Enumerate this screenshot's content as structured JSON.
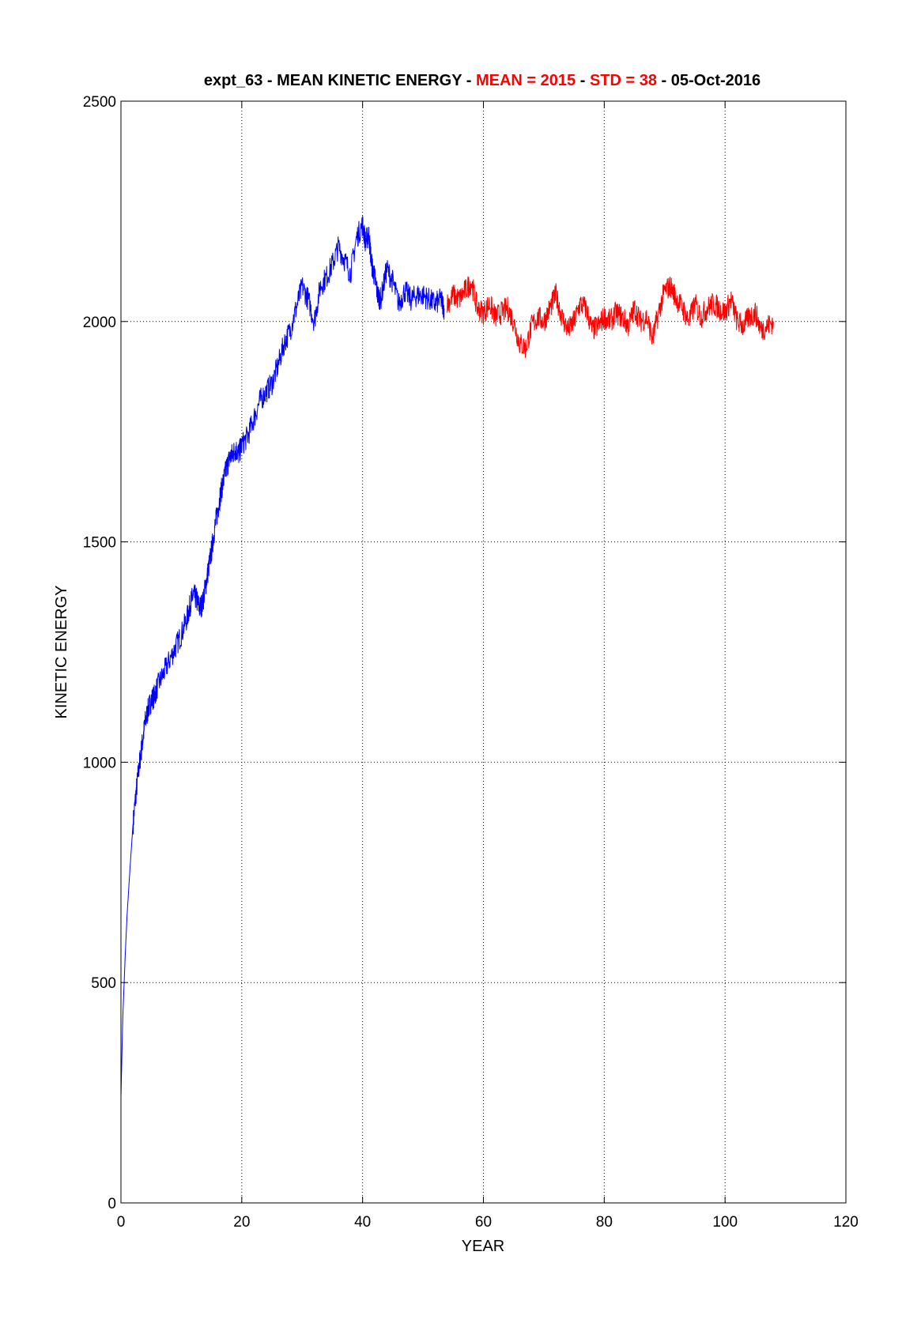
{
  "chart_data": {
    "type": "line",
    "title_parts": [
      {
        "text": "expt_63 - MEAN KINETIC ENERGY - ",
        "color": "#000000"
      },
      {
        "text": "MEAN =  2015",
        "color": "#ff0000"
      },
      {
        "text": " - ",
        "color": "#000000"
      },
      {
        "text": "STD =   38",
        "color": "#ff0000"
      },
      {
        "text": " - 05-Oct-2016",
        "color": "#000000"
      }
    ],
    "xlabel": "YEAR",
    "ylabel": "KINETIC ENERGY",
    "xlim": [
      0,
      120
    ],
    "ylim": [
      0,
      2500
    ],
    "xticks": [
      0,
      20,
      40,
      60,
      80,
      100,
      120
    ],
    "yticks": [
      0,
      500,
      1000,
      1500,
      2000,
      2500
    ],
    "grid": true,
    "mean": 2015,
    "std": 38,
    "series": [
      {
        "color": "#0000ff",
        "x": [
          0.0,
          0.3,
          0.7,
          1.0,
          1.5,
          2.0,
          2.5,
          3.0,
          3.5,
          4.0,
          4.5,
          5.0,
          5.5,
          6.0,
          7.0,
          8.0,
          9.0,
          10.0,
          11.0,
          11.5,
          12.0,
          12.5,
          13.0,
          13.5,
          14.0,
          14.5,
          15.0,
          15.5,
          16.0,
          16.5,
          17.0,
          17.5,
          18.0,
          18.5,
          19.0,
          19.5,
          20.0,
          21.0,
          22.0,
          23.0,
          24.0,
          25.0,
          26.0,
          27.0,
          28.0,
          29.0,
          30.0,
          31.0,
          32.0,
          33.0,
          34.0,
          35.0,
          36.0,
          37.0,
          38.0,
          39.0,
          40.0,
          40.5,
          41.0,
          41.5,
          42.0,
          42.5,
          43.0,
          44.0,
          45.0,
          46.0,
          47.0,
          48.0,
          49.0,
          50.0,
          51.0,
          52.0,
          53.0,
          53.5
        ],
        "y": [
          240,
          420,
          560,
          650,
          760,
          860,
          930,
          990,
          1040,
          1090,
          1120,
          1140,
          1150,
          1170,
          1200,
          1230,
          1260,
          1290,
          1330,
          1360,
          1380,
          1370,
          1350,
          1360,
          1400,
          1440,
          1480,
          1530,
          1570,
          1610,
          1640,
          1670,
          1690,
          1700,
          1710,
          1700,
          1720,
          1740,
          1780,
          1820,
          1840,
          1860,
          1900,
          1950,
          1980,
          2030,
          2080,
          2050,
          2000,
          2080,
          2100,
          2130,
          2170,
          2140,
          2110,
          2190,
          2220,
          2180,
          2200,
          2130,
          2100,
          2060,
          2050,
          2120,
          2090,
          2040,
          2070,
          2050,
          2060,
          2060,
          2050,
          2040,
          2050,
          2030
        ]
      },
      {
        "color": "#ff0000",
        "x": [
          54.0,
          55.0,
          56.0,
          57.0,
          58.0,
          59.0,
          60.0,
          61.0,
          62.0,
          63.0,
          64.0,
          65.0,
          66.0,
          67.0,
          68.0,
          69.0,
          70.0,
          71.0,
          72.0,
          73.0,
          74.0,
          75.0,
          76.0,
          77.0,
          78.0,
          79.0,
          80.0,
          81.0,
          82.0,
          83.0,
          84.0,
          85.0,
          86.0,
          87.0,
          88.0,
          89.0,
          90.0,
          91.0,
          92.0,
          93.0,
          94.0,
          95.0,
          96.0,
          97.0,
          98.0,
          99.0,
          100.0,
          101.0,
          102.0,
          103.0,
          104.0,
          105.0,
          106.0,
          107.0,
          108.0
        ],
        "y": [
          2040,
          2060,
          2050,
          2070,
          2090,
          2030,
          2020,
          2040,
          2010,
          2020,
          2030,
          2000,
          1950,
          1940,
          1990,
          2010,
          2000,
          2030,
          2060,
          2010,
          1980,
          2000,
          2040,
          2030,
          1980,
          1990,
          2010,
          2000,
          2020,
          2010,
          1990,
          2030,
          2000,
          2010,
          1960,
          2020,
          2070,
          2080,
          2050,
          2030,
          2000,
          2040,
          2010,
          2030,
          2040,
          2030,
          2020,
          2050,
          2000,
          1990,
          2010,
          2020,
          1980,
          1990,
          2000
        ]
      }
    ]
  }
}
